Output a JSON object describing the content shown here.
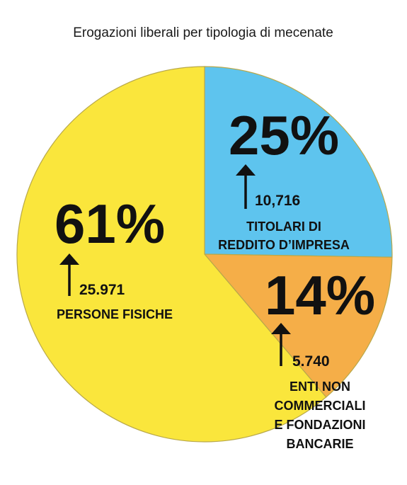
{
  "chart_data": {
    "type": "pie",
    "title": "Erogazioni liberali per tipologia di mecenate",
    "slices": [
      {
        "id": "imprese",
        "percent_label": "25%",
        "value": "10,716",
        "value_num": 10716,
        "label_lines": [
          "TITOLARI DI",
          "REDDITO D’IMPRESA"
        ],
        "color": "#5ec4ee"
      },
      {
        "id": "enti",
        "percent_label": "14%",
        "value": "5.740",
        "value_num": 5740,
        "label_lines": [
          "ENTI NON",
          "COMMERCIALI",
          "E FONDAZIONI",
          "BANCARIE"
        ],
        "color": "#f5ae48"
      },
      {
        "id": "persone",
        "percent_label": "61%",
        "value": "25.971",
        "value_num": 25971,
        "label_lines": [
          "PERSONE FISICHE"
        ],
        "color": "#fae63c"
      }
    ],
    "legend": "none",
    "slice_edge_color": "#b8a84a"
  }
}
